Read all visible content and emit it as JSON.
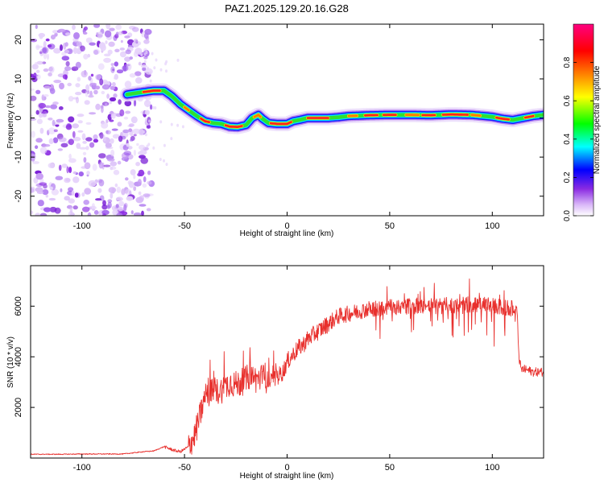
{
  "chart_data": [
    {
      "type": "heatmap",
      "title": "PAZ1.2025.129.20.16.G28",
      "xlabel": "Height of straight line (km)",
      "ylabel": "Frequency (Hz)",
      "xlim": [
        -125,
        125
      ],
      "ylim": [
        -25,
        24
      ],
      "xticks": [
        -100,
        -50,
        0,
        50,
        100
      ],
      "yticks": [
        -20,
        -10,
        0,
        10,
        20
      ],
      "colorbar": {
        "label": "Normalized spectral amplitude",
        "range": [
          0,
          1
        ],
        "ticks": [
          "0.0",
          "0.2",
          "0.4",
          "0.6",
          "0.8"
        ],
        "colors": [
          "#ffffff",
          "#d8b4f8",
          "#8a2be2",
          "#0000ff",
          "#00ffff",
          "#00ff00",
          "#ffff00",
          "#ff8000",
          "#ff0000",
          "#ff0080"
        ]
      },
      "ridge": {
        "x": [
          -78,
          -72,
          -65,
          -60,
          -56,
          -52,
          -48,
          -44,
          -40,
          -36,
          -32,
          -28,
          -24,
          -20,
          -17,
          -14,
          -12,
          -9,
          -5,
          0,
          3,
          6,
          10,
          15,
          20,
          25,
          30,
          40,
          50,
          60,
          70,
          80,
          90,
          100,
          105,
          110,
          115,
          120,
          125
        ],
        "y": [
          6,
          6.5,
          7,
          7,
          5.5,
          3.5,
          2,
          0.5,
          -0.8,
          -1.3,
          -1.5,
          -2.2,
          -2.3,
          -1.8,
          0,
          0.8,
          -0.2,
          -1.3,
          -1.5,
          -1.5,
          -0.8,
          -0.5,
          0,
          0,
          0,
          0.2,
          0.5,
          0.7,
          0.8,
          0.8,
          0.7,
          0.9,
          0.8,
          0.3,
          -0.2,
          -0.5,
          0,
          0.5,
          0.8
        ]
      },
      "noise_region_x": [
        -125,
        -70
      ]
    },
    {
      "type": "line",
      "xlabel": "Height of straight line (km)",
      "ylabel": "SNR (10 * v/v)",
      "xlim": [
        -125,
        125
      ],
      "ylim": [
        0,
        7600
      ],
      "xticks": [
        -100,
        -50,
        0,
        50,
        100
      ],
      "yticks": [
        2000,
        4000,
        6000
      ],
      "color": "#e8302d",
      "series": [
        {
          "x": [
            -125,
            -110,
            -100,
            -90,
            -80,
            -70,
            -65,
            -60,
            -55,
            -52,
            -48,
            -45,
            -42,
            -40,
            -38,
            -35,
            -32,
            -30,
            -28,
            -25,
            -22,
            -20,
            -18,
            -15,
            -12,
            -10,
            -8,
            -5,
            -2,
            0,
            2,
            5,
            8,
            10,
            15,
            20,
            25,
            30,
            35,
            40,
            45,
            50,
            55,
            60,
            65,
            70,
            75,
            80,
            85,
            90,
            95,
            100,
            105,
            110,
            112,
            113,
            114,
            116,
            120,
            125
          ],
          "y": [
            150,
            150,
            160,
            160,
            160,
            250,
            280,
            450,
            300,
            250,
            450,
            900,
            1800,
            2400,
            2600,
            2600,
            2700,
            2800,
            3000,
            2900,
            3000,
            3100,
            3300,
            3100,
            3200,
            3100,
            3000,
            3200,
            3400,
            3800,
            4000,
            4300,
            4500,
            4700,
            5000,
            5300,
            5600,
            5700,
            5800,
            5900,
            5900,
            5950,
            6000,
            6000,
            6000,
            6000,
            6000,
            6050,
            6050,
            6050,
            6050,
            6000,
            5950,
            5900,
            5900,
            4000,
            3500,
            3500,
            3400,
            3400
          ]
        }
      ]
    }
  ]
}
